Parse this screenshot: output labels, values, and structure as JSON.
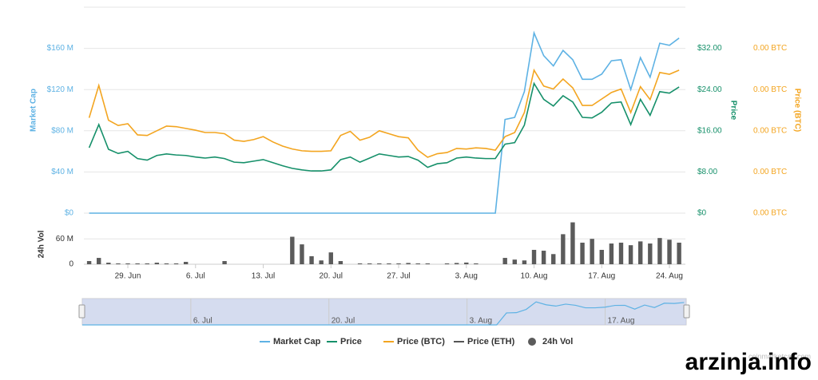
{
  "chart_data": {
    "type": "line",
    "categories": [
      null,
      null,
      null,
      null,
      "29. Jun",
      null,
      null,
      null,
      null,
      null,
      null,
      "6. Jul",
      null,
      null,
      null,
      null,
      null,
      null,
      "13. Jul",
      null,
      null,
      null,
      null,
      null,
      null,
      "20. Jul",
      null,
      null,
      null,
      null,
      null,
      null,
      "27. Jul",
      null,
      null,
      null,
      null,
      null,
      null,
      "3. Aug",
      null,
      null,
      null,
      null,
      null,
      null,
      "10. Aug",
      null,
      null,
      null,
      null,
      null,
      null,
      "17. Aug",
      null,
      null,
      null,
      null,
      null,
      null,
      "24. Aug",
      null
    ],
    "ylim": [
      0,
      200000000
    ],
    "yticks": [
      {
        "value": 0,
        "label": "$0"
      },
      {
        "value": 40000000,
        "label": "$40 M"
      },
      {
        "value": 80000000,
        "label": "$80 M"
      },
      {
        "value": 120000000,
        "label": "$120 M"
      },
      {
        "value": 160000000,
        "label": "$160 M"
      }
    ],
    "ylabel": "Market Cap",
    "y2lim": [
      0,
      40
    ],
    "y2ticks": [
      {
        "value": 0,
        "label": "$0"
      },
      {
        "value": 8,
        "label": "$8.00"
      },
      {
        "value": 16,
        "label": "$16.00"
      },
      {
        "value": 24,
        "label": "$24.00"
      },
      {
        "value": 32,
        "label": "$32.00"
      }
    ],
    "y2label": "Price",
    "y3lim": [
      0,
      0.0035
    ],
    "y3ticks": [
      {
        "value": 0,
        "label": "0.00 BTC"
      },
      {
        "value": 0.0007,
        "label": "0.00 BTC"
      },
      {
        "value": 0.0014,
        "label": "0.00 BTC"
      },
      {
        "value": 0.0021,
        "label": "0.00 BTC"
      },
      {
        "value": 0.0028,
        "label": "0.00 BTC"
      }
    ],
    "y3label": "Price (BTC)",
    "grid": true,
    "series": [
      {
        "name": "Market Cap",
        "color": "#5eb2e4",
        "axis": "y",
        "values": [
          0,
          0,
          0,
          0,
          0,
          0,
          0,
          0,
          0,
          0,
          0,
          0,
          0,
          0,
          0,
          0,
          0,
          0,
          0,
          0,
          0,
          0,
          0,
          0,
          0,
          0,
          0,
          0,
          0,
          0,
          0,
          0,
          0,
          0,
          0,
          0,
          0,
          0,
          0,
          0,
          0,
          0,
          0,
          91000000,
          93000000,
          118000000,
          175000000,
          153000000,
          143000000,
          158000000,
          149000000,
          130000000,
          130000000,
          135000000,
          148000000,
          149000000,
          120000000,
          151000000,
          132000000,
          165000000,
          163000000,
          170000000
        ]
      },
      {
        "name": "Price",
        "color": "#16906a",
        "axis": "y2",
        "values": [
          12.7,
          17.2,
          12.4,
          11.6,
          12.0,
          10.6,
          10.3,
          11.2,
          11.5,
          11.3,
          11.2,
          10.9,
          10.7,
          10.9,
          10.6,
          9.9,
          9.8,
          10.1,
          10.4,
          9.8,
          9.2,
          8.7,
          8.4,
          8.2,
          8.2,
          8.4,
          10.4,
          10.9,
          9.9,
          10.7,
          11.5,
          11.2,
          10.9,
          11.0,
          10.3,
          8.9,
          9.6,
          9.8,
          10.7,
          10.9,
          10.7,
          10.6,
          10.6,
          13.4,
          13.7,
          17.1,
          25.2,
          22.1,
          20.8,
          22.8,
          21.6,
          18.6,
          18.5,
          19.6,
          21.4,
          21.6,
          17.2,
          22.1,
          19.0,
          23.6,
          23.3,
          24.5
        ]
      },
      {
        "name": "Price (BTC)",
        "color": "#f3a520",
        "axis": "y3",
        "values": [
          0.00162,
          0.00217,
          0.00158,
          0.00149,
          0.00152,
          0.00133,
          0.00132,
          0.0014,
          0.00148,
          0.00147,
          0.00144,
          0.00141,
          0.00137,
          0.00137,
          0.00135,
          0.00124,
          0.00122,
          0.00125,
          0.0013,
          0.00121,
          0.00114,
          0.00109,
          0.00106,
          0.00105,
          0.00105,
          0.00106,
          0.00132,
          0.00139,
          0.00124,
          0.00129,
          0.0014,
          0.00135,
          0.0013,
          0.00128,
          0.00107,
          0.00095,
          0.00101,
          0.00103,
          0.0011,
          0.00109,
          0.00111,
          0.0011,
          0.00107,
          0.0013,
          0.00137,
          0.00171,
          0.00243,
          0.00216,
          0.00211,
          0.00228,
          0.00213,
          0.00183,
          0.00183,
          0.00194,
          0.00205,
          0.00211,
          0.00171,
          0.00215,
          0.00193,
          0.00239,
          0.00236,
          0.00243
        ]
      },
      {
        "name": "Price (ETH)",
        "color": "#555555",
        "visible": false
      },
      {
        "name": "24h Vol",
        "color": "#5b5b5b",
        "axis": "vol",
        "values": [
          7500000,
          15000000,
          3700000,
          2000000,
          2000000,
          2000000,
          2000000,
          3700000,
          2000000,
          2000000,
          5600000,
          0,
          0,
          0,
          7500000,
          0,
          0,
          0,
          0,
          0,
          0,
          65000000,
          47000000,
          19000000,
          9000000,
          28000000,
          7500000,
          0,
          2000000,
          2000000,
          2000000,
          2000000,
          2000000,
          3000000,
          2000000,
          2000000,
          0,
          2000000,
          3000000,
          4000000,
          2000000,
          0,
          0,
          15000000,
          11000000,
          9000000,
          34000000,
          32000000,
          24000000,
          71000000,
          99000000,
          51000000,
          60000000,
          34000000,
          49000000,
          51000000,
          45000000,
          54000000,
          49000000,
          62000000,
          58000000,
          51000000
        ]
      }
    ],
    "vollim": [
      0,
      100000000
    ],
    "volticks": [
      0,
      {
        "value": 60000000,
        "label": "60 M"
      }
    ],
    "vollabel": "24h Vol",
    "credit": "coinmarketcap.com",
    "watermark": "arzinja.info"
  }
}
